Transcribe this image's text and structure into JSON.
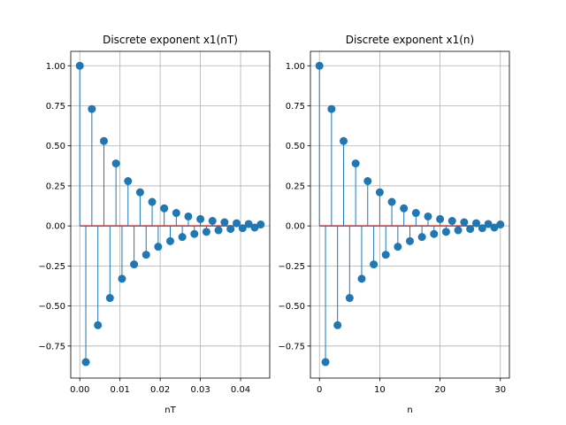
{
  "figure": {
    "background": "#ffffff"
  },
  "style": {
    "stem_color": "#1f77b4",
    "grid_color": "#b0b0b0",
    "baseline_color": "#d62728"
  },
  "chart_data": [
    {
      "type": "stem",
      "title": "Discrete exponent x1(nT)",
      "xlabel": "nT",
      "ylabel": "",
      "xlim": [
        -0.00225,
        0.04725
      ],
      "ylim": [
        -0.95,
        1.09
      ],
      "grid": true,
      "xticks": [
        0.0,
        0.01,
        0.02,
        0.03,
        0.04
      ],
      "xtick_labels": [
        "0.00",
        "0.01",
        "0.02",
        "0.03",
        "0.04"
      ],
      "yticks": [
        1.0,
        0.75,
        0.5,
        0.25,
        0.0,
        -0.25,
        -0.5,
        -0.75
      ],
      "ytick_labels": [
        "1.00",
        "0.75",
        "0.50",
        "0.25",
        "0.00",
        "−0.25",
        "−0.50",
        "−0.75"
      ],
      "x": [
        0.0,
        0.0015,
        0.003,
        0.0045,
        0.006,
        0.0075,
        0.009,
        0.0105,
        0.012,
        0.0135,
        0.015,
        0.0165,
        0.018,
        0.0195,
        0.021,
        0.0225,
        0.024,
        0.0255,
        0.027,
        0.0285,
        0.03,
        0.0315,
        0.033,
        0.0345,
        0.036,
        0.0375,
        0.039,
        0.0405,
        0.042,
        0.0435,
        0.045
      ],
      "values": [
        1.0,
        -0.85,
        0.73,
        -0.62,
        0.53,
        -0.45,
        0.39,
        -0.33,
        0.28,
        -0.24,
        0.21,
        -0.18,
        0.15,
        -0.13,
        0.11,
        -0.095,
        0.081,
        -0.069,
        0.059,
        -0.05,
        0.043,
        -0.037,
        0.031,
        -0.027,
        0.023,
        -0.019,
        0.017,
        -0.014,
        0.012,
        -0.01,
        0.009
      ]
    },
    {
      "type": "stem",
      "title": "Discrete exponent x1(n)",
      "xlabel": "n",
      "ylabel": "",
      "xlim": [
        -1.5,
        31.5
      ],
      "ylim": [
        -0.95,
        1.09
      ],
      "grid": true,
      "xticks": [
        0,
        10,
        20,
        30
      ],
      "xtick_labels": [
        "0",
        "10",
        "20",
        "30"
      ],
      "yticks": [
        1.0,
        0.75,
        0.5,
        0.25,
        0.0,
        -0.25,
        -0.5,
        -0.75
      ],
      "ytick_labels": [
        "1.00",
        "0.75",
        "0.50",
        "0.25",
        "0.00",
        "−0.25",
        "−0.50",
        "−0.75"
      ],
      "x": [
        0,
        1,
        2,
        3,
        4,
        5,
        6,
        7,
        8,
        9,
        10,
        11,
        12,
        13,
        14,
        15,
        16,
        17,
        18,
        19,
        20,
        21,
        22,
        23,
        24,
        25,
        26,
        27,
        28,
        29,
        30
      ],
      "values": [
        1.0,
        -0.85,
        0.73,
        -0.62,
        0.53,
        -0.45,
        0.39,
        -0.33,
        0.28,
        -0.24,
        0.21,
        -0.18,
        0.15,
        -0.13,
        0.11,
        -0.095,
        0.081,
        -0.069,
        0.059,
        -0.05,
        0.043,
        -0.037,
        0.031,
        -0.027,
        0.023,
        -0.019,
        0.017,
        -0.014,
        0.012,
        -0.01,
        0.009
      ]
    }
  ]
}
